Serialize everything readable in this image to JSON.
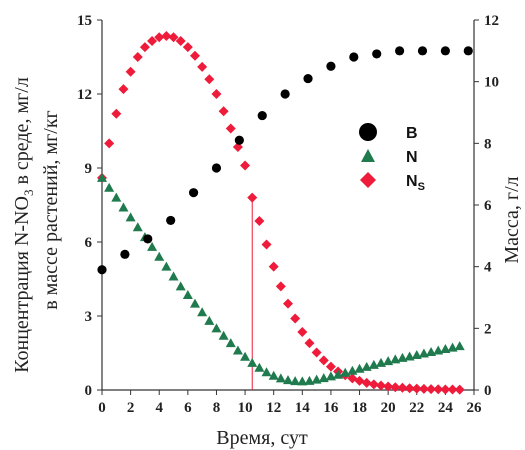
{
  "chart_data": {
    "type": "scatter",
    "xlabel": "Время, сут",
    "ylabel_left_line1": "Концентрация N-NO",
    "ylabel_left_sub": "3",
    "ylabel_left_line1_rest": " в среде, мг/л",
    "ylabel_left_line2": "в массе растений, мг/кг",
    "ylabel_right": "Масса, г/л",
    "xlim": [
      0,
      26
    ],
    "ylim_left": [
      0,
      15
    ],
    "ylim_right": [
      0,
      12
    ],
    "x_ticks": [
      "0",
      "2",
      "4",
      "6",
      "8",
      "10",
      "12",
      "14",
      "16",
      "18",
      "20",
      "22",
      "24",
      "26"
    ],
    "y_left_ticks": [
      "0",
      "3",
      "6",
      "9",
      "12",
      "15"
    ],
    "y_right_ticks": [
      "0",
      "2",
      "4",
      "6",
      "8",
      "10",
      "12"
    ],
    "vertical_line_x": 10.5,
    "legend": {
      "position": "right",
      "items": [
        {
          "label": "B",
          "sub": "",
          "marker": "circle",
          "color": "#000000"
        },
        {
          "label": "N",
          "sub": "",
          "marker": "triangle",
          "color": "#1f7a4d"
        },
        {
          "label": "N",
          "sub": "S",
          "marker": "diamond",
          "color": "#ee1c3a"
        }
      ]
    },
    "series": [
      {
        "key": "B",
        "axis": "right",
        "marker": "circle",
        "color": "#000000",
        "x": [
          0,
          1.6,
          3.2,
          4.8,
          6.4,
          8.0,
          9.6,
          11.2,
          12.8,
          14.4,
          16.0,
          17.6,
          19.2,
          20.8,
          22.4,
          24.0,
          25.6
        ],
        "y": [
          3.9,
          4.4,
          4.9,
          5.5,
          6.4,
          7.2,
          8.1,
          8.9,
          9.6,
          10.1,
          10.5,
          10.8,
          10.9,
          11.0,
          11.0,
          11.0,
          11.0
        ]
      },
      {
        "key": "N",
        "axis": "left",
        "marker": "triangle",
        "color": "#1f7a4d",
        "x": [
          0,
          0.5,
          1.0,
          1.5,
          2.0,
          2.5,
          3.0,
          3.5,
          4.0,
          4.5,
          5.0,
          5.5,
          6.0,
          6.5,
          7.0,
          7.5,
          8.0,
          8.5,
          9.0,
          9.5,
          10.0,
          10.5,
          11.0,
          11.5,
          12.0,
          12.5,
          13.0,
          13.5,
          14.0,
          14.5,
          15.0,
          15.5,
          16.0,
          16.5,
          17.0,
          17.5,
          18.0,
          18.5,
          19.0,
          19.5,
          20.0,
          20.5,
          21.0,
          21.5,
          22.0,
          22.5,
          23.0,
          23.5,
          24.0,
          24.5,
          25.0
        ],
        "y": [
          8.6,
          8.2,
          7.8,
          7.4,
          7.0,
          6.6,
          6.2,
          5.8,
          5.4,
          5.0,
          4.6,
          4.2,
          3.85,
          3.5,
          3.15,
          2.8,
          2.5,
          2.2,
          1.9,
          1.6,
          1.35,
          1.1,
          0.9,
          0.72,
          0.58,
          0.47,
          0.4,
          0.36,
          0.35,
          0.37,
          0.42,
          0.48,
          0.55,
          0.62,
          0.7,
          0.78,
          0.86,
          0.94,
          1.02,
          1.1,
          1.17,
          1.24,
          1.3,
          1.36,
          1.42,
          1.48,
          1.54,
          1.6,
          1.66,
          1.72,
          1.78
        ]
      },
      {
        "key": "NS",
        "axis": "left",
        "marker": "diamond",
        "color": "#ee1c3a",
        "x": [
          0,
          0.5,
          1.0,
          1.5,
          2.0,
          2.5,
          3.0,
          3.5,
          4.0,
          4.5,
          5.0,
          5.5,
          6.0,
          6.5,
          7.0,
          7.5,
          8.0,
          8.5,
          9.0,
          9.5,
          10.0,
          10.5,
          11.0,
          11.5,
          12.0,
          12.5,
          13.0,
          13.5,
          14.0,
          14.5,
          15.0,
          15.5,
          16.0,
          16.5,
          17.0,
          17.5,
          18.0,
          18.5,
          19.0,
          19.5,
          20.0,
          20.5,
          21.0,
          21.5,
          22.0,
          22.5,
          23.0,
          23.5,
          24.0,
          24.5,
          25.0
        ],
        "y": [
          8.6,
          10.0,
          11.2,
          12.2,
          12.9,
          13.5,
          13.9,
          14.15,
          14.3,
          14.35,
          14.3,
          14.15,
          13.9,
          13.55,
          13.1,
          12.6,
          12.0,
          11.3,
          10.6,
          9.85,
          9.1,
          7.8,
          6.85,
          5.9,
          5.0,
          4.2,
          3.5,
          2.9,
          2.35,
          1.9,
          1.52,
          1.2,
          0.95,
          0.75,
          0.6,
          0.47,
          0.37,
          0.29,
          0.23,
          0.18,
          0.14,
          0.11,
          0.09,
          0.07,
          0.055,
          0.045,
          0.035,
          0.028,
          0.022,
          0.018,
          0.015
        ]
      }
    ]
  }
}
